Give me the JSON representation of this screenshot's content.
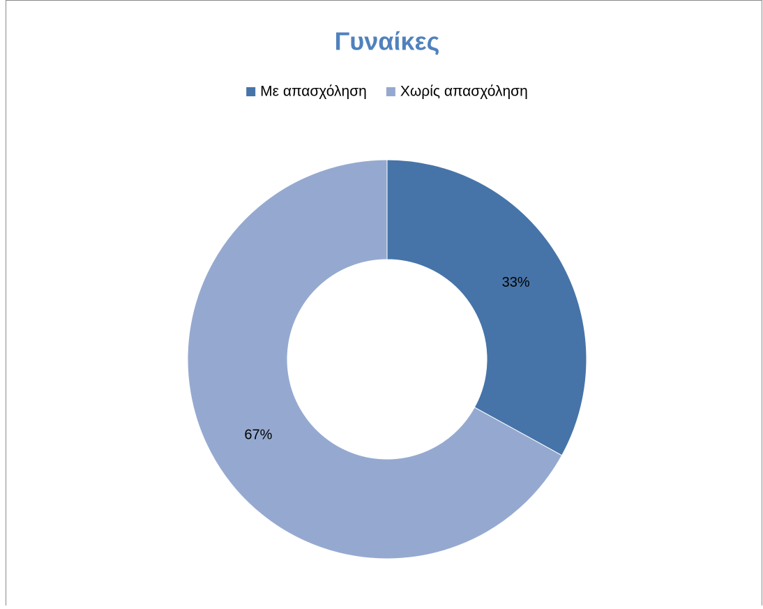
{
  "chart_data": {
    "type": "donut",
    "title": "Γυναίκες",
    "categories": [
      "Με απασχόληση",
      "Χωρίς απασχόληση"
    ],
    "values": [
      33,
      67
    ],
    "value_labels": [
      "33%",
      "67%"
    ],
    "colors": [
      "#4674a8",
      "#95a9d0"
    ],
    "legend": "top"
  }
}
